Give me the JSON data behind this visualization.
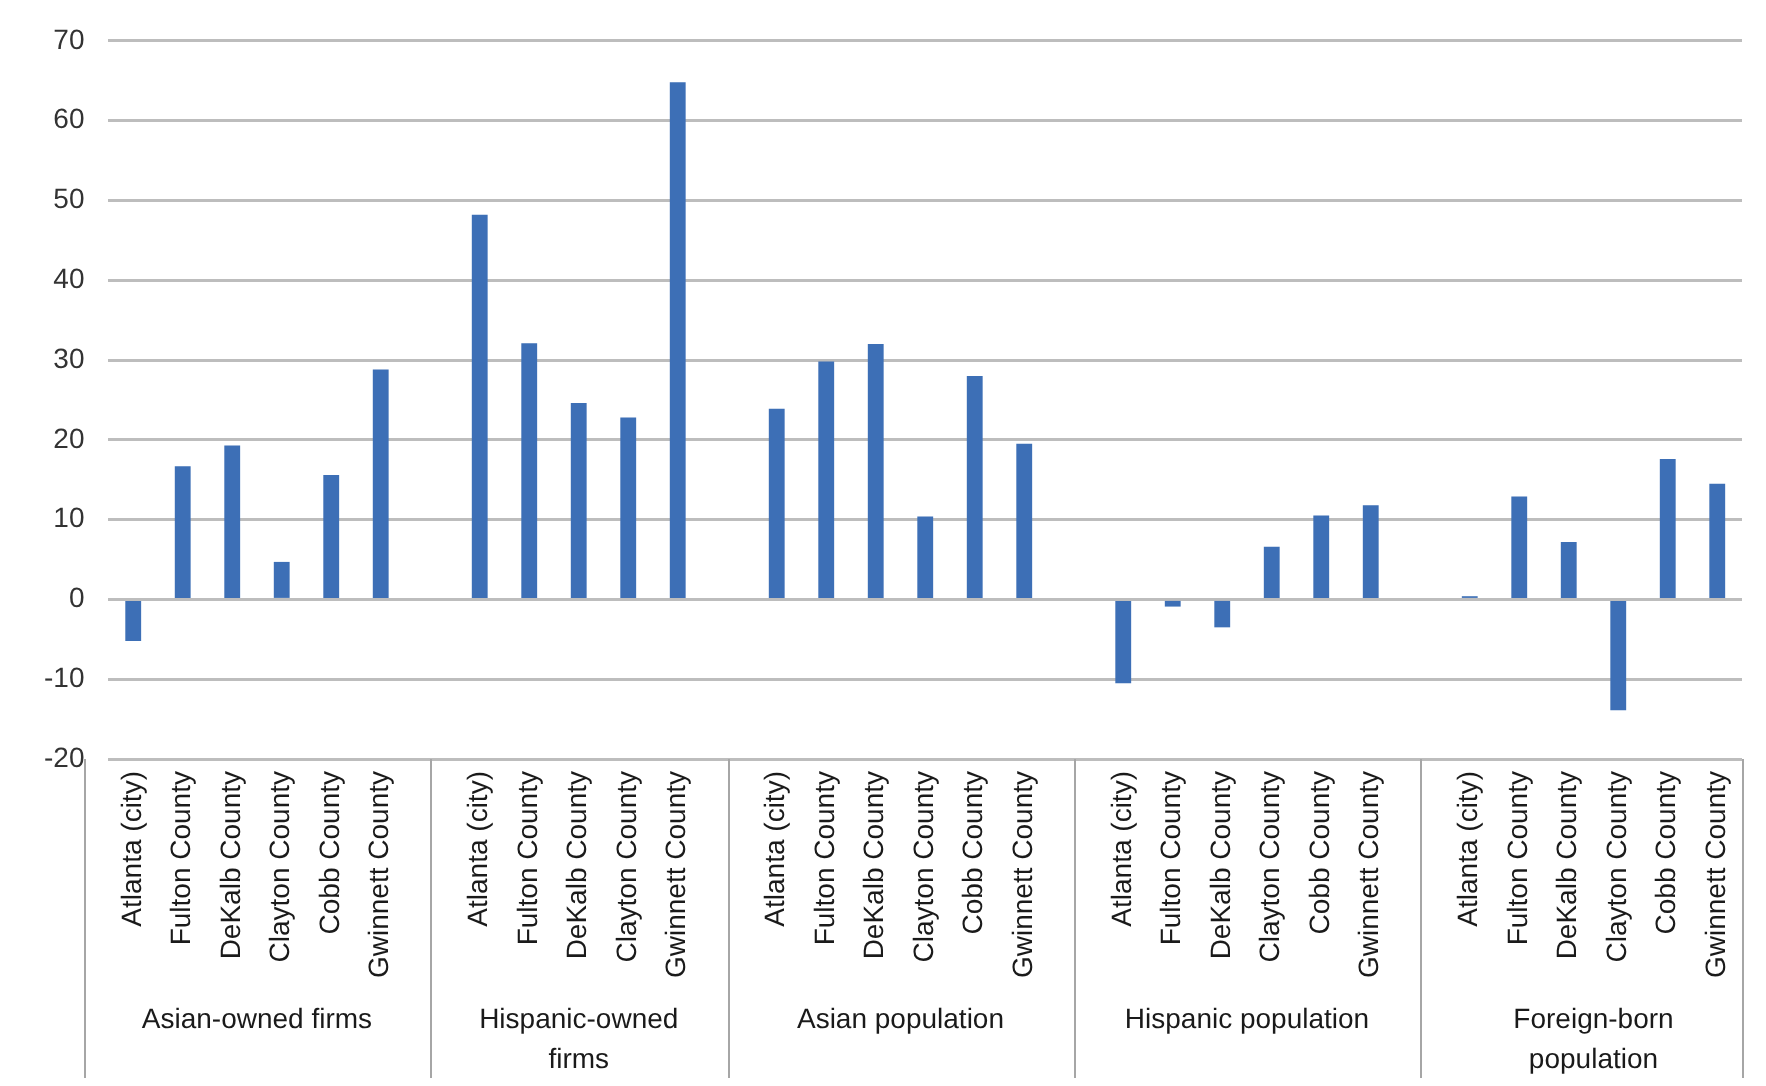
{
  "chart_data": {
    "type": "bar",
    "categories": [
      "Atlanta (city)",
      "Fulton County",
      "DeKalb County",
      "Clayton County",
      "Cobb County",
      "Gwinnett County",
      null,
      "Atlanta (city)",
      "Fulton County",
      "DeKalb County",
      "Clayton County",
      "Gwinnett County",
      null,
      "Atlanta (city)",
      "Fulton County",
      "DeKalb County",
      "Clayton County",
      "Cobb County",
      "Gwinnett County",
      null,
      "Atlanta (city)",
      "Fulton County",
      "DeKalb County",
      "Clayton County",
      "Cobb County",
      "Gwinnett County",
      null,
      "Atlanta (city)",
      "Fulton County",
      "DeKalb County",
      "Clayton County",
      "Cobb County",
      "Gwinnett County"
    ],
    "values": [
      -5.2,
      16.7,
      19.3,
      4.7,
      15.6,
      28.8,
      null,
      48.2,
      32.1,
      24.6,
      22.8,
      64.8,
      null,
      23.9,
      29.8,
      32.0,
      10.4,
      28.0,
      19.5,
      null,
      -10.5,
      -0.9,
      -3.5,
      6.6,
      10.5,
      11.8,
      null,
      0.4,
      12.9,
      7.2,
      -13.9,
      17.6,
      14.5
    ],
    "color": "#3d6fb6",
    "ylim": [
      -20,
      70
    ],
    "yticks": [
      -20,
      -10,
      0,
      10,
      20,
      30,
      40,
      50,
      60,
      70
    ],
    "grid": "y",
    "legend": false,
    "annotations": [
      "Asian-owned firms",
      "Hispanic-owned firms",
      "Asian population",
      "Hispanic population",
      "Foreign-born population"
    ]
  }
}
